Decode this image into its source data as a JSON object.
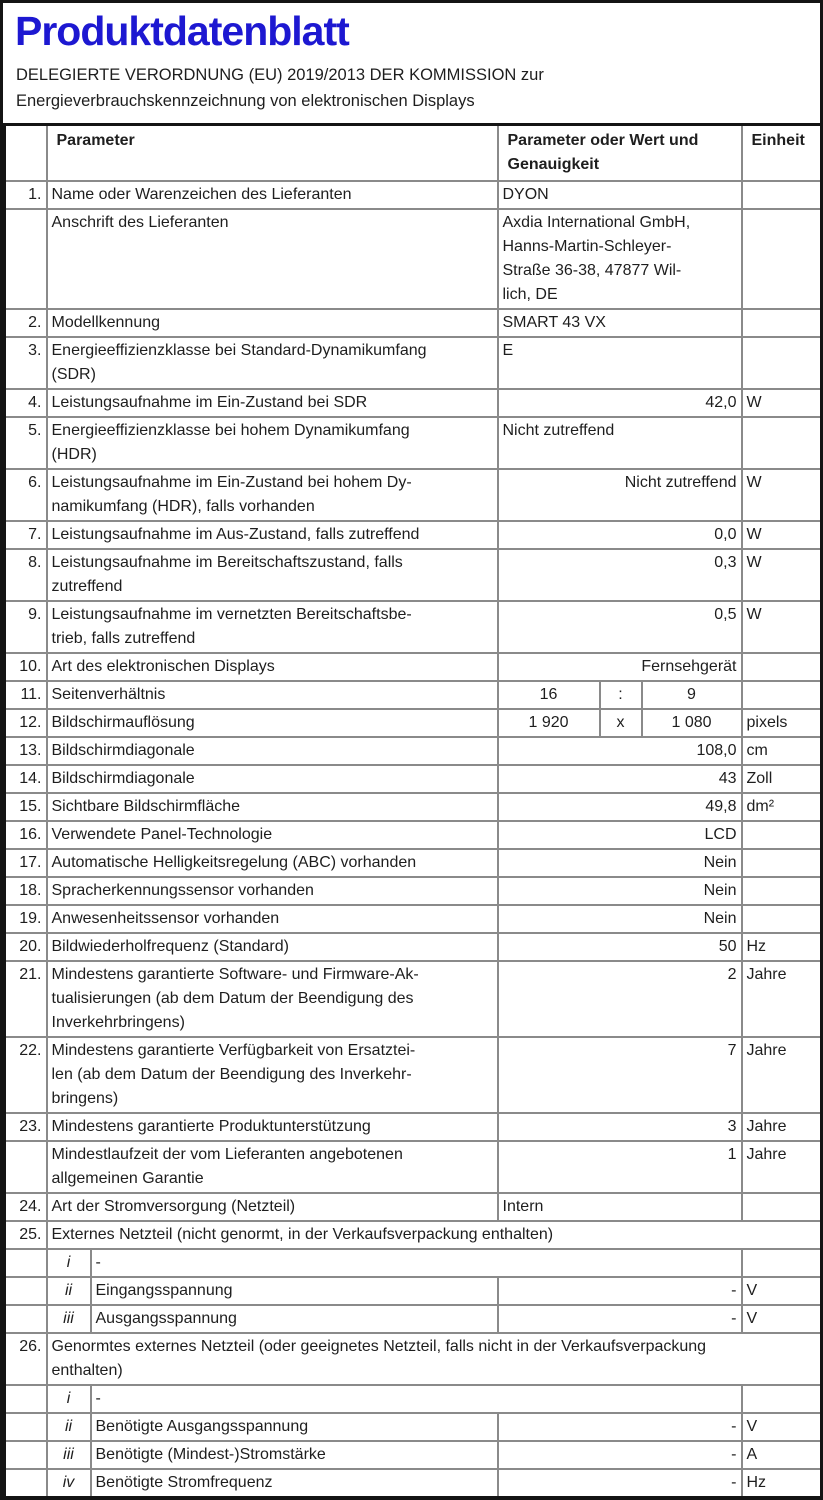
{
  "colors": {
    "title_blue": "#1d18d1",
    "grid_line": "#8a8a8a",
    "outer_border": "#141414",
    "text": "#1e1e1e"
  },
  "page": {
    "title": "Produktdatenblatt",
    "subtitle": "DELEGIERTE VERORDNUNG (EU) 2019/2013 DER KOMMISSION zur\nEnergieverbrauchskennzeichnung von elektronischen Displays"
  },
  "table": {
    "header": {
      "num": "",
      "param": "Parameter",
      "value": "Parameter oder Wert und\nGenauigkeit",
      "unit": "Einheit"
    },
    "rows": [
      {
        "num": "1.",
        "param": "Name oder Warenzeichen des Lieferanten",
        "value": "DYON",
        "va": "left",
        "unit": ""
      },
      {
        "num": "",
        "param": "Anschrift des Lieferanten",
        "value": "Axdia International GmbH,\nHanns-Martin-Schleyer-\nStraße 36-38, 47877 Wil-\nlich, DE",
        "va": "left",
        "unit": ""
      },
      {
        "num": "2.",
        "param": "Modellkennung",
        "value": "SMART 43 VX",
        "va": "left",
        "unit": ""
      },
      {
        "num": "3.",
        "param": "Energieeffizienzklasse bei Standard-Dynamikumfang\n(SDR)",
        "value": "E",
        "va": "left",
        "unit": ""
      },
      {
        "num": "4.",
        "param": "Leistungsaufnahme im Ein-Zustand bei SDR",
        "value": "42,0",
        "va": "right",
        "unit": "W"
      },
      {
        "num": "5.",
        "param": "Energieeffizienzklasse bei hohem Dynamikumfang\n(HDR)",
        "value": "Nicht zutreffend",
        "va": "left",
        "unit": ""
      },
      {
        "num": "6.",
        "param": "Leistungsaufnahme im Ein-Zustand bei hohem Dy-\nnamikumfang (HDR), falls vorhanden",
        "value": "Nicht zutreffend",
        "va": "right",
        "unit": "W"
      },
      {
        "num": "7.",
        "param": "Leistungsaufnahme im Aus-Zustand, falls zutreffend",
        "value": "0,0",
        "va": "right",
        "unit": "W"
      },
      {
        "num": "8.",
        "param": "Leistungsaufnahme im Bereitschaftszustand, falls\nzutreffend",
        "value": "0,3",
        "va": "right",
        "unit": "W"
      },
      {
        "num": "9.",
        "param": "Leistungsaufnahme im vernetzten Bereitschaftsbe-\ntrieb, falls zutreffend",
        "value": "0,5",
        "va": "right",
        "unit": "W"
      },
      {
        "num": "10.",
        "param": "Art des elektronischen Displays",
        "value": "Fernsehgerät",
        "va": "right",
        "unit": ""
      },
      {
        "num": "11.",
        "type": "triple",
        "param": "Seitenverhältnis",
        "v1": "16",
        "v2": ":",
        "v3": "9",
        "unit": ""
      },
      {
        "num": "12.",
        "type": "triple",
        "param": "Bildschirmauflösung",
        "v1": "1 920",
        "v2": "x",
        "v3": "1 080",
        "unit": "pixels"
      },
      {
        "num": "13.",
        "param": "Bildschirmdiagonale",
        "value": "108,0",
        "va": "right",
        "unit": "cm"
      },
      {
        "num": "14.",
        "param": "Bildschirmdiagonale",
        "value": "43",
        "va": "right",
        "unit": "Zoll"
      },
      {
        "num": "15.",
        "param": "Sichtbare Bildschirmfläche",
        "value": "49,8",
        "va": "right",
        "unit": "dm²"
      },
      {
        "num": "16.",
        "param": "Verwendete Panel-Technologie",
        "value": "LCD",
        "va": "right",
        "unit": ""
      },
      {
        "num": "17.",
        "param": "Automatische Helligkeitsregelung (ABC) vorhanden",
        "value": "Nein",
        "va": "right",
        "unit": ""
      },
      {
        "num": "18.",
        "param": "Spracherkennungssensor vorhanden",
        "value": "Nein",
        "va": "right",
        "unit": ""
      },
      {
        "num": "19.",
        "param": "Anwesenheitssensor vorhanden",
        "value": "Nein",
        "va": "right",
        "unit": ""
      },
      {
        "num": "20.",
        "param": "Bildwiederholfrequenz (Standard)",
        "value": "50",
        "va": "right",
        "unit": "Hz"
      },
      {
        "num": "21.",
        "param": "Mindestens garantierte Software- und Firmware-Ak-\ntualisierungen (ab dem Datum der Beendigung des\nInverkehrbringens)",
        "value": "2",
        "va": "right",
        "unit": "Jahre"
      },
      {
        "num": "22.",
        "param": "Mindestens garantierte Verfügbarkeit von Ersatztei-\nlen (ab dem Datum der Beendigung des Inverkehr-\nbringens)",
        "value": "7",
        "va": "right",
        "unit": "Jahre"
      },
      {
        "num": "23.",
        "param": "Mindestens garantierte Produktunterstützung",
        "value": "3",
        "va": "right",
        "unit": "Jahre"
      },
      {
        "num": "",
        "param": "Mindestlaufzeit der vom Lieferanten angebotenen\nallgemeinen Garantie",
        "value": "1",
        "va": "right",
        "unit": "Jahre"
      },
      {
        "num": "24.",
        "param": "Art der Stromversorgung (Netzteil)",
        "value": "Intern",
        "va": "left",
        "unit": ""
      },
      {
        "num": "25.",
        "type": "span",
        "param": "Externes Netzteil (nicht genormt, in der Verkaufsverpackung enthalten)"
      },
      {
        "num": "",
        "sub": "i",
        "type": "dash",
        "value": "-",
        "unit": ""
      },
      {
        "num": "",
        "sub": "ii",
        "type": "subrow",
        "param": "Eingangsspannung",
        "value": "-",
        "va": "right",
        "unit": "V"
      },
      {
        "num": "",
        "sub": "iii",
        "type": "subrow",
        "param": "Ausgangsspannung",
        "value": "-",
        "va": "right",
        "unit": "V"
      },
      {
        "num": "26.",
        "type": "span",
        "param": "Genormtes externes Netzteil (oder geeignetes Netzteil, falls nicht in der Verkaufsverpackung\nenthalten)"
      },
      {
        "num": "",
        "sub": "i",
        "type": "dash",
        "value": "-",
        "unit": ""
      },
      {
        "num": "",
        "sub": "ii",
        "type": "subrow",
        "param": "Benötigte Ausgangsspannung",
        "value": "-",
        "va": "right",
        "unit": "V"
      },
      {
        "num": "",
        "sub": "iii",
        "type": "subrow",
        "param": "Benötigte (Mindest-)Stromstärke",
        "value": "-",
        "va": "right",
        "unit": "A"
      },
      {
        "num": "",
        "sub": "iv",
        "type": "subrow",
        "param": "Benötigte Stromfrequenz",
        "value": "-",
        "va": "right",
        "unit": "Hz"
      }
    ]
  }
}
